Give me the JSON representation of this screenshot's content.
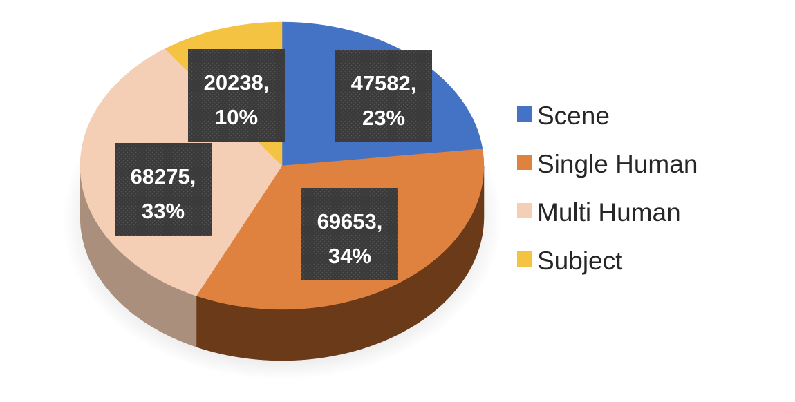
{
  "chart_data": {
    "type": "pie",
    "style": "3d",
    "categories": [
      "Scene",
      "Single Human",
      "Multi Human",
      "Subject"
    ],
    "values": [
      47582,
      69653,
      68275,
      20238
    ],
    "percentages": [
      "23%",
      "34%",
      "33%",
      "10%"
    ],
    "colors": [
      "#4472C4",
      "#E0823F",
      "#F4CFB5",
      "#F5C342"
    ],
    "side_colors": [
      "#2F508A",
      "#6B3A18",
      "#A98F7C",
      "#B08A28"
    ],
    "data_labels": [
      {
        "value": "47582,",
        "percent": "23%"
      },
      {
        "value": "69653,",
        "percent": "34%"
      },
      {
        "value": "68275,",
        "percent": "33%"
      },
      {
        "value": "20238,",
        "percent": "10%"
      }
    ],
    "label_box_color": "#3A3A3A",
    "legend_position": "right",
    "title": "",
    "start_angle": "top",
    "direction": "clockwise"
  },
  "legend": {
    "items": [
      {
        "label": "Scene",
        "color": "#4472C4"
      },
      {
        "label": "Single Human",
        "color": "#E0823F"
      },
      {
        "label": "Multi Human",
        "color": "#F4CFB5"
      },
      {
        "label": "Subject",
        "color": "#F5C342"
      }
    ]
  }
}
